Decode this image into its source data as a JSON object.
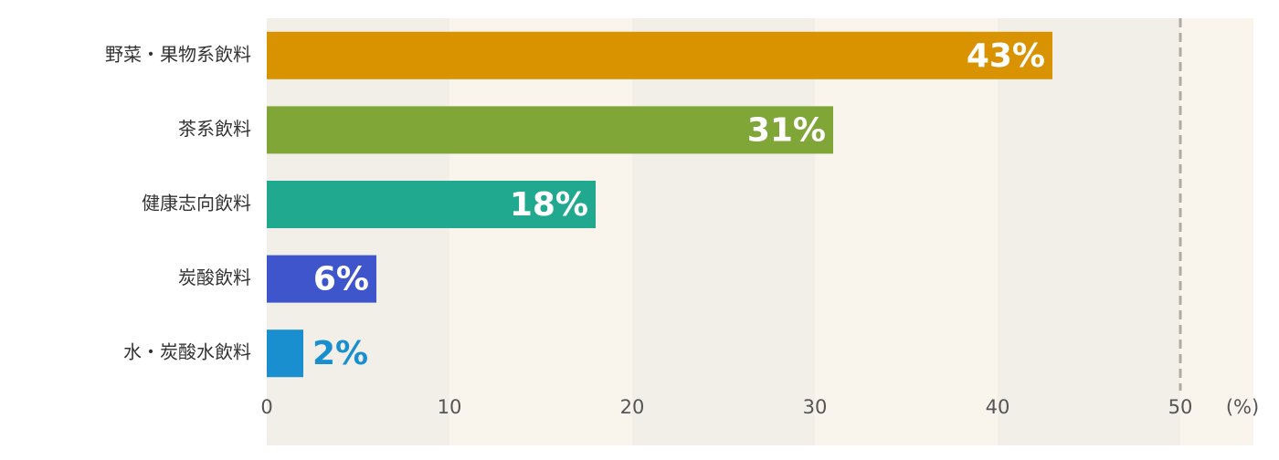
{
  "chart_data": {
    "type": "hbar",
    "categories": [
      "野菜・果物系飲料",
      "茶系飲料",
      "健康志向飲料",
      "炭酸飲料",
      "水・炭酸水飲料"
    ],
    "values": [
      43,
      31,
      18,
      6,
      2
    ],
    "value_labels": [
      "43%",
      "31%",
      "18%",
      "6%",
      "2%"
    ],
    "colors": [
      "#d99200",
      "#7fa637",
      "#20a98f",
      "#3f55cc",
      "#1a8fd0"
    ],
    "xlim": [
      0,
      54
    ],
    "xticks": [
      0,
      10,
      20,
      30,
      40,
      50
    ],
    "reference_line": 50,
    "x_unit": "(%)"
  }
}
